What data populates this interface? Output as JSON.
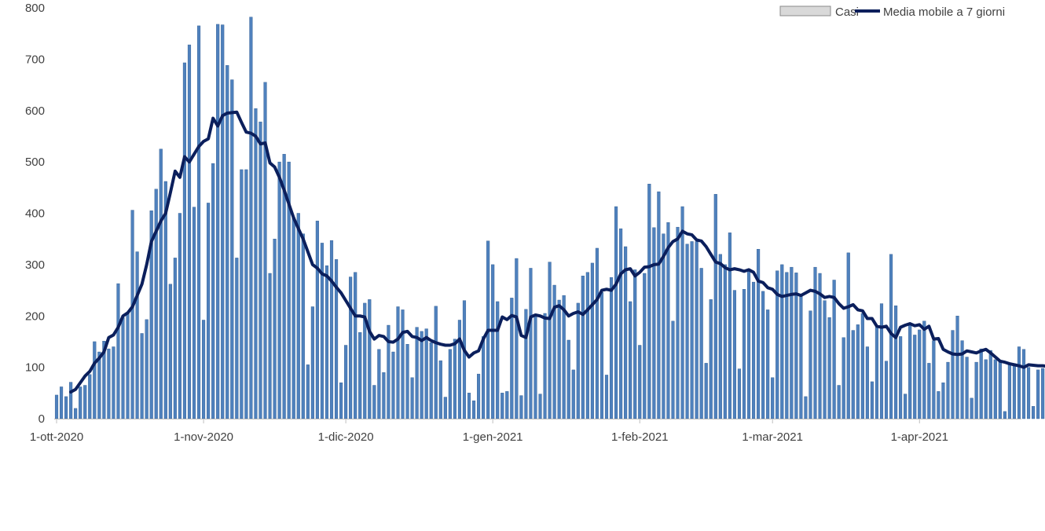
{
  "chart_data": {
    "type": "bar+line",
    "title": "",
    "xlabel": "",
    "ylabel": "",
    "ylim": [
      0,
      800
    ],
    "yticks": [
      0,
      100,
      200,
      300,
      400,
      500,
      600,
      700,
      800
    ],
    "xticks": [
      {
        "date": "2020-10-01",
        "label": "1-ott-2020"
      },
      {
        "date": "2020-11-01",
        "label": "1-nov-2020"
      },
      {
        "date": "2020-12-01",
        "label": "1-dic-2020"
      },
      {
        "date": "2021-01-01",
        "label": "1-gen-2021"
      },
      {
        "date": "2021-02-01",
        "label": "1-feb-2021"
      },
      {
        "date": "2021-03-01",
        "label": "1-mar-2021"
      },
      {
        "date": "2021-04-01",
        "label": "1-apr-2021"
      }
    ],
    "grid": false,
    "legend_position": "top-right",
    "x_start": "2020-10-01",
    "x_end": "2021-04-22",
    "series": [
      {
        "name": "Casi",
        "type": "bar",
        "color": "#4f81bd",
        "legend_color": "#d9d9d9",
        "values": [
          46,
          62,
          43,
          71,
          20,
          62,
          65,
          86,
          150,
          130,
          151,
          136,
          140,
          263,
          197,
          205,
          406,
          325,
          166,
          193,
          405,
          447,
          525,
          462,
          262,
          313,
          400,
          693,
          728,
          412,
          765,
          192,
          420,
          497,
          768,
          767,
          688,
          660,
          313,
          485,
          485,
          782,
          604,
          578,
          655,
          283,
          350,
          500,
          515,
          500,
          392,
          400,
          360,
          105,
          218,
          385,
          342,
          298,
          347,
          310,
          70,
          143,
          276,
          285,
          168,
          225,
          232,
          65,
          135,
          90,
          182,
          130,
          218,
          212,
          145,
          80,
          178,
          170,
          175,
          148,
          219,
          113,
          42,
          135,
          155,
          192,
          230,
          50,
          35,
          87,
          160,
          346,
          300,
          228,
          50,
          53,
          235,
          312,
          45,
          213,
          293,
          200,
          48,
          205,
          305,
          260,
          231,
          240,
          153,
          95,
          225,
          278,
          285,
          303,
          332,
          246,
          85,
          275,
          413,
          370,
          335,
          228,
          290,
          143,
          283,
          457,
          372,
          442,
          360,
          382,
          190,
          373,
          413,
          340,
          345,
          345,
          293,
          108,
          232,
          437,
          320,
          300,
          362,
          250,
          97,
          252,
          290,
          266,
          330,
          248,
          212,
          80,
          288,
          300,
          285,
          295,
          284,
          242,
          43,
          210,
          295,
          283,
          230,
          197,
          270,
          65,
          158,
          323,
          172,
          183,
          205,
          140,
          72,
          178,
          224,
          112,
          320,
          220,
          160,
          48,
          185,
          163,
          173,
          190,
          108,
          152,
          53,
          70,
          110,
          172,
          200,
          152,
          120,
          40,
          110,
          136,
          115,
          133,
          115,
          113,
          14,
          106,
          107,
          140,
          135,
          100,
          24,
          95,
          98
        ]
      },
      {
        "name": "Media mobile a 7 giorni",
        "type": "line",
        "color": "#0b1f5c",
        "start_index": 3,
        "values": [
          52,
          57,
          70,
          83,
          92,
          108,
          118,
          130,
          158,
          163,
          178,
          200,
          206,
          218,
          240,
          262,
          300,
          345,
          365,
          385,
          400,
          440,
          482,
          470,
          510,
          500,
          515,
          530,
          540,
          545,
          585,
          570,
          590,
          595,
          596,
          597,
          577,
          558,
          556,
          550,
          535,
          537,
          498,
          490,
          470,
          445,
          418,
          391,
          370,
          350,
          325,
          300,
          293,
          282,
          278,
          268,
          256,
          245,
          230,
          215,
          200,
          200,
          198,
          170,
          155,
          162,
          160,
          150,
          149,
          155,
          168,
          170,
          160,
          158,
          152,
          158,
          152,
          148,
          145,
          143,
          143,
          146,
          155,
          133,
          120,
          128,
          132,
          155,
          172,
          172,
          172,
          198,
          193,
          201,
          198,
          162,
          158,
          198,
          202,
          200,
          196,
          195,
          217,
          220,
          212,
          200,
          205,
          208,
          203,
          212,
          222,
          232,
          250,
          252,
          250,
          262,
          282,
          290,
          292,
          278,
          285,
          295,
          296,
          300,
          301,
          316,
          333,
          345,
          350,
          365,
          360,
          358,
          348,
          346,
          335,
          320,
          305,
          302,
          294,
          290,
          292,
          290,
          287,
          290,
          285,
          268,
          265,
          255,
          252,
          242,
          238,
          240,
          242,
          243,
          240,
          245,
          250,
          248,
          243,
          236,
          238,
          236,
          224,
          215,
          218,
          222,
          212,
          210,
          195,
          195,
          180,
          178,
          180,
          166,
          158,
          178,
          182,
          185,
          181,
          183,
          174,
          180,
          155,
          156,
          135,
          130,
          126,
          125,
          126,
          132,
          130,
          128,
          132,
          135,
          128,
          120,
          112,
          110,
          107,
          105,
          103,
          100,
          105,
          104,
          103,
          103,
          102,
          102,
          103,
          102
        ]
      }
    ]
  }
}
